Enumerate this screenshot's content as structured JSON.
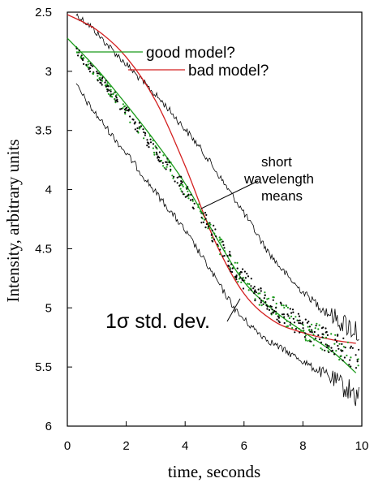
{
  "chart_data": {
    "type": "line",
    "xlabel": "time, seconds",
    "ylabel": "Intensity, arbitrary units",
    "xlim": [
      0,
      10
    ],
    "ylim": [
      6,
      2.5
    ],
    "y_inverted": true,
    "xticks": [
      "0",
      "2",
      "4",
      "6",
      "8",
      "10"
    ],
    "yticks": [
      "2.5",
      "3",
      "3.5",
      "4",
      "4.5",
      "5",
      "5.5",
      "6"
    ],
    "grid": false,
    "colors": {
      "good": "#1a9a1a",
      "bad": "#d42020",
      "data": "#000000"
    },
    "annotations": {
      "good": "good model?",
      "bad": "bad model?",
      "means": [
        "short",
        "wavelength",
        "means"
      ],
      "std": "1σ std. dev."
    },
    "series": [
      {
        "kind": "points",
        "x": [
          0.3,
          0.8,
          1.3,
          1.8,
          2.3,
          2.8,
          3.3,
          3.8,
          4.3,
          4.8,
          5.3,
          5.8,
          6.3,
          6.8,
          7.3,
          7.8,
          8.3,
          8.8,
          9.3,
          9.9
        ],
        "y": [
          2.83,
          2.97,
          3.12,
          3.28,
          3.44,
          3.6,
          3.76,
          3.93,
          4.11,
          4.31,
          4.52,
          4.71,
          4.85,
          4.96,
          5.05,
          5.13,
          5.21,
          5.28,
          5.35,
          5.43
        ]
      },
      {
        "kind": "upper-band",
        "x": [
          0.3,
          0.8,
          1.3,
          1.8,
          2.3,
          2.8,
          3.3,
          3.8,
          4.3,
          4.8,
          5.3,
          5.8,
          6.3,
          6.8,
          7.3,
          7.8,
          8.3,
          8.8,
          9.3,
          9.9
        ],
        "y": [
          2.52,
          2.62,
          2.76,
          2.89,
          3.02,
          3.15,
          3.28,
          3.43,
          3.58,
          3.75,
          3.94,
          4.12,
          4.32,
          4.52,
          4.68,
          4.82,
          4.93,
          5.03,
          5.12,
          5.2
        ]
      },
      {
        "kind": "lower-band",
        "x": [
          0.3,
          0.8,
          1.3,
          1.8,
          2.3,
          2.8,
          3.3,
          3.8,
          4.3,
          4.8,
          5.3,
          5.8,
          6.3,
          6.8,
          7.3,
          7.8,
          8.3,
          8.8,
          9.3,
          9.9
        ],
        "y": [
          3.12,
          3.31,
          3.47,
          3.63,
          3.79,
          3.96,
          4.12,
          4.28,
          4.46,
          4.66,
          4.86,
          5.05,
          5.17,
          5.27,
          5.35,
          5.42,
          5.5,
          5.57,
          5.65,
          5.75
        ]
      },
      {
        "kind": "good-model",
        "x": [
          0,
          1,
          2,
          3,
          4,
          5,
          6,
          7,
          8,
          9,
          9.8
        ],
        "y": [
          2.72,
          2.98,
          3.28,
          3.6,
          3.95,
          4.38,
          4.78,
          5.02,
          5.2,
          5.37,
          5.55
        ]
      },
      {
        "kind": "bad-model",
        "x": [
          0,
          1,
          2,
          3,
          4,
          5,
          6,
          7,
          8,
          9,
          9.8
        ],
        "y": [
          2.52,
          2.65,
          2.88,
          3.25,
          3.8,
          4.43,
          4.88,
          5.11,
          5.21,
          5.27,
          5.3
        ]
      }
    ]
  }
}
